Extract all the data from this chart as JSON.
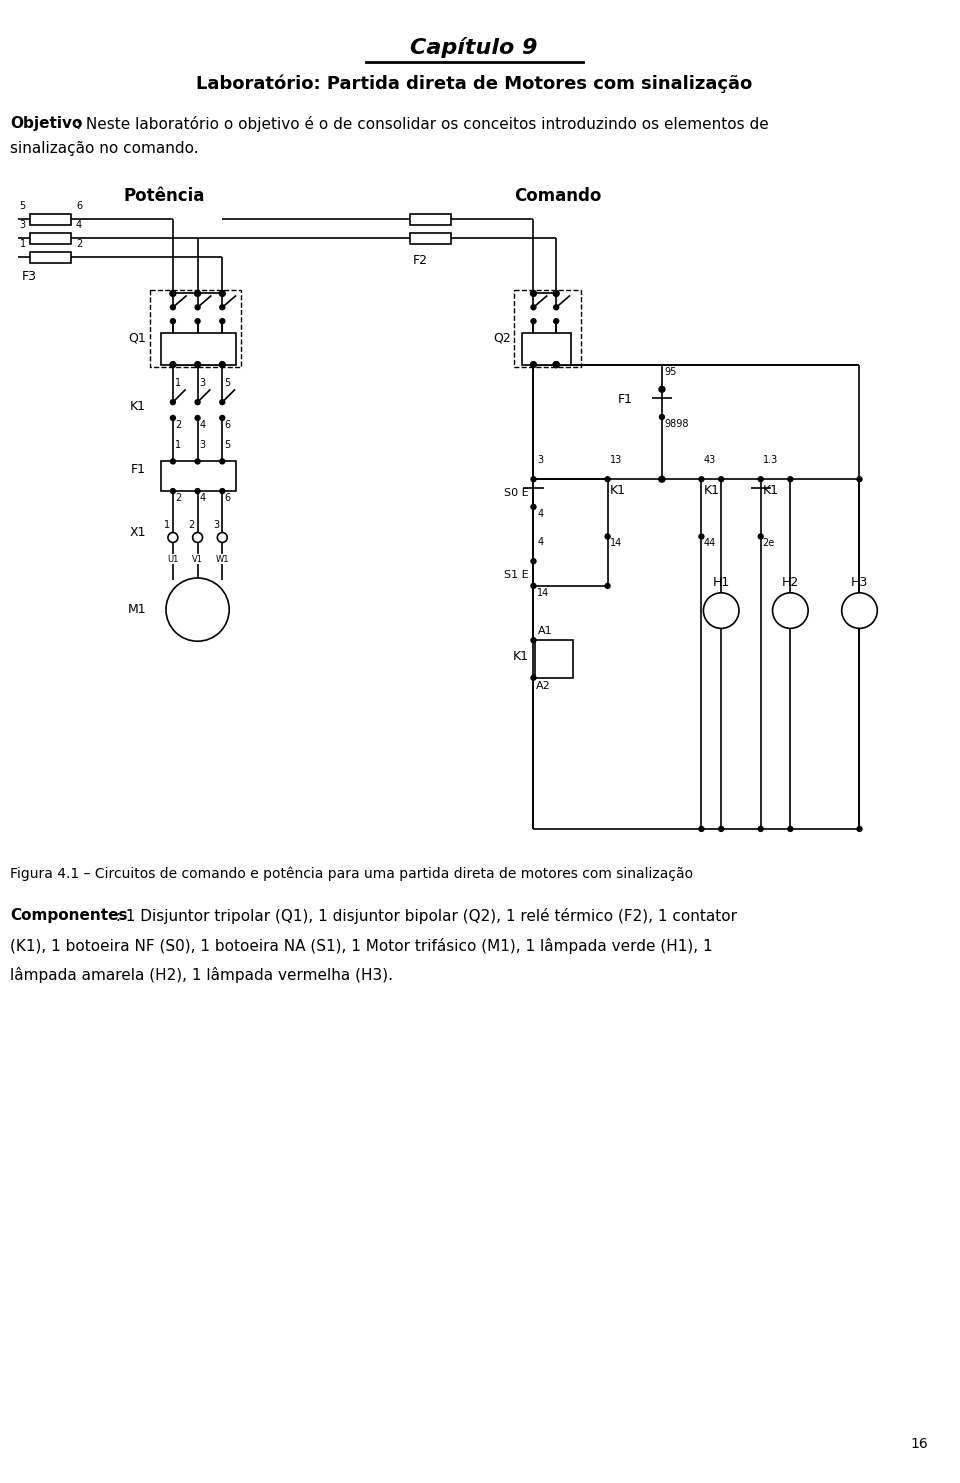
{
  "title": "Capítulo 9",
  "subtitle": "Laboratório: Partida direta de Motores com sinalização",
  "objetivo_bold": "Objetivo",
  "objetivo_text": " : Neste laboratório o objetivo é o de consolidar os conceitos introduzindo os elementos de",
  "objetivo_line2": "sinalização no comando.",
  "potencia_label": "Potência",
  "comando_label": "Comando",
  "figura_text": "Figura 4.1 – Circuitos de comando e potência para uma partida direta de motores com sinalização",
  "componentes_bold": "Componentes",
  "componentes_text": "  : 1 Disjuntor tripolar (Q1), 1 disjuntor bipolar (Q2), 1 relé térmico (F2), 1 contator",
  "comp_line2": "(K1), 1 botoeira NF (S0), 1 botoeira NA (S1), 1 Motor trifásico (M1), 1 lâmpada verde (H1), 1",
  "comp_line3": "lâmpada amarela (H2), 1 lâmpada vermelha (H3).",
  "page_number": "16",
  "bg_color": "#ffffff",
  "line_color": "#000000"
}
